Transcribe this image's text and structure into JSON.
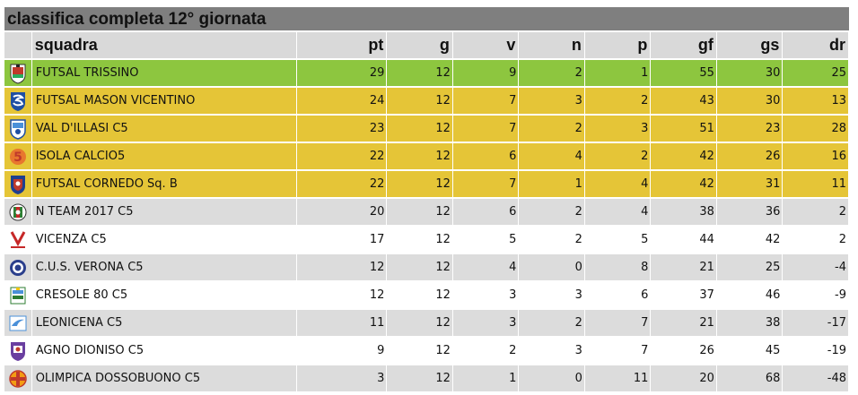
{
  "title": "classifica completa 12° giornata",
  "columns": {
    "team": "squadra",
    "pt": "pt",
    "g": "g",
    "v": "v",
    "n": "n",
    "p": "p",
    "gf": "gf",
    "gs": "gs",
    "dr": "dr"
  },
  "colors": {
    "title_bar": "#7f7f7f",
    "header_row": "#d9d9d9",
    "first_place": "#8dc63f",
    "playoff_zone": "#e5c537",
    "row_alt": "#dcdcdc",
    "row_plain": "#ffffff"
  },
  "rows": [
    {
      "logo": "futsal-trissino-logo-icon",
      "team": "FUTSAL TRISSINO",
      "pt": "29",
      "g": "12",
      "v": "9",
      "n": "2",
      "p": "1",
      "gf": "55",
      "gs": "30",
      "dr": "25"
    },
    {
      "logo": "futsal-mason-vicentino-logo-icon",
      "team": "FUTSAL MASON VICENTINO",
      "pt": "24",
      "g": "12",
      "v": "7",
      "n": "3",
      "p": "2",
      "gf": "43",
      "gs": "30",
      "dr": "13"
    },
    {
      "logo": "val-dillasi-logo-icon",
      "team": "VAL D'ILLASI C5",
      "pt": "23",
      "g": "12",
      "v": "7",
      "n": "2",
      "p": "3",
      "gf": "51",
      "gs": "23",
      "dr": "28"
    },
    {
      "logo": "isola-calcio5-logo-icon",
      "team": "ISOLA CALCIO5",
      "pt": "22",
      "g": "12",
      "v": "6",
      "n": "4",
      "p": "2",
      "gf": "42",
      "gs": "26",
      "dr": "16"
    },
    {
      "logo": "futsal-cornedo-logo-icon",
      "team": "FUTSAL CORNEDO Sq. B",
      "pt": "22",
      "g": "12",
      "v": "7",
      "n": "1",
      "p": "4",
      "gf": "42",
      "gs": "31",
      "dr": "11"
    },
    {
      "logo": "n-team-2017-logo-icon",
      "team": "N TEAM 2017 C5",
      "pt": "20",
      "g": "12",
      "v": "6",
      "n": "2",
      "p": "4",
      "gf": "38",
      "gs": "36",
      "dr": "2"
    },
    {
      "logo": "vicenza-c5-logo-icon",
      "team": "VICENZA C5",
      "pt": "17",
      "g": "12",
      "v": "5",
      "n": "2",
      "p": "5",
      "gf": "44",
      "gs": "42",
      "dr": "2"
    },
    {
      "logo": "cus-verona-logo-icon",
      "team": "C.U.S. VERONA C5",
      "pt": "12",
      "g": "12",
      "v": "4",
      "n": "0",
      "p": "8",
      "gf": "21",
      "gs": "25",
      "dr": "-4"
    },
    {
      "logo": "cresole-80-logo-icon",
      "team": "CRESOLE 80 C5",
      "pt": "12",
      "g": "12",
      "v": "3",
      "n": "3",
      "p": "6",
      "gf": "37",
      "gs": "46",
      "dr": "-9"
    },
    {
      "logo": "leonicena-logo-icon",
      "team": "LEONICENA C5",
      "pt": "11",
      "g": "12",
      "v": "3",
      "n": "2",
      "p": "7",
      "gf": "21",
      "gs": "38",
      "dr": "-17"
    },
    {
      "logo": "agno-dioniso-logo-icon",
      "team": "AGNO DIONISO C5",
      "pt": "9",
      "g": "12",
      "v": "2",
      "n": "3",
      "p": "7",
      "gf": "26",
      "gs": "45",
      "dr": "-19"
    },
    {
      "logo": "olimpica-dossobuono-logo-icon",
      "team": "OLIMPICA DOSSOBUONO C5",
      "pt": "3",
      "g": "12",
      "v": "1",
      "n": "0",
      "p": "11",
      "gf": "20",
      "gs": "68",
      "dr": "-48"
    }
  ]
}
